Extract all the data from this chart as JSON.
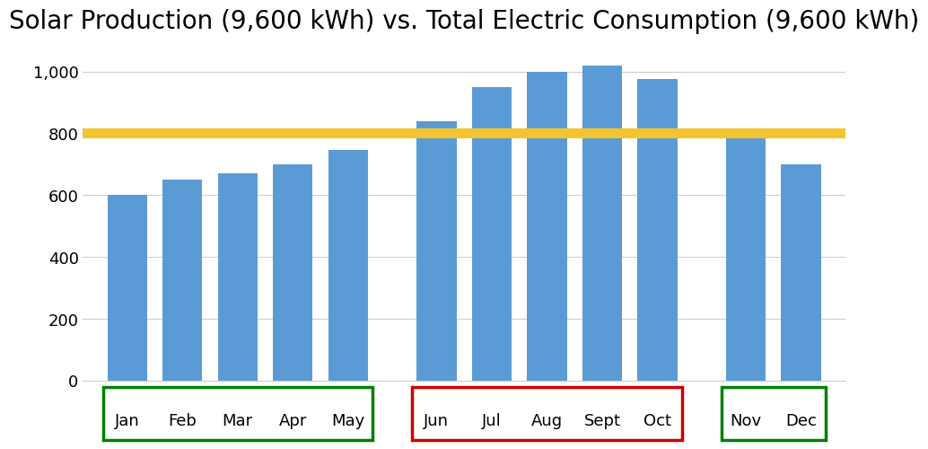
{
  "title": "Solar Production (9,600 kWh) vs. Total Electric Consumption (9,600 kWh)",
  "months": [
    "Jan",
    "Feb",
    "Mar",
    "Apr",
    "May",
    "Jun",
    "Jul",
    "Aug",
    "Sept",
    "Oct",
    "Nov",
    "Dec"
  ],
  "values": [
    600,
    650,
    670,
    700,
    745,
    840,
    950,
    1000,
    1020,
    975,
    785,
    700
  ],
  "bar_color": "#5B9BD5",
  "hline_y": 800,
  "hline_color": "#F4C430",
  "hline_linewidth": 8,
  "ylim": [
    0,
    1100
  ],
  "yticks": [
    0,
    200,
    400,
    600,
    800,
    1000
  ],
  "ytick_labels": [
    "0",
    "200",
    "400",
    "600",
    "800",
    "1,000"
  ],
  "grid_color": "#D0D0D0",
  "background_color": "#FFFFFF",
  "title_fontsize": 20,
  "tick_fontsize": 13,
  "groups": [
    {
      "start": 0,
      "end": 4,
      "color": "#008000"
    },
    {
      "start": 5,
      "end": 9,
      "color": "#CC0000"
    },
    {
      "start": 10,
      "end": 11,
      "color": "#008000"
    }
  ],
  "bar_positions": [
    0,
    1,
    2,
    3,
    4,
    5.6,
    6.6,
    7.6,
    8.6,
    9.6,
    11.2,
    12.2
  ]
}
